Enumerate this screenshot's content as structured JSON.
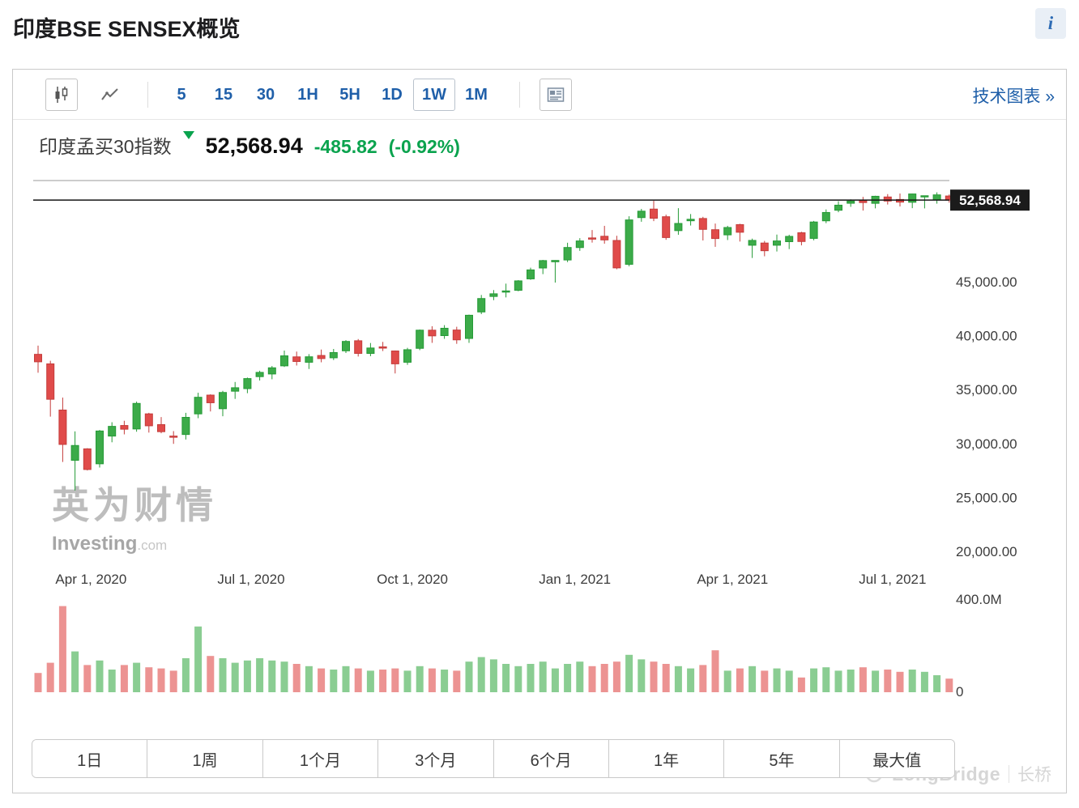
{
  "page": {
    "title": "印度BSE SENSEX概览",
    "info_icon": "i"
  },
  "toolbar": {
    "chart_types": [
      {
        "name": "candlestick",
        "selected": true
      },
      {
        "name": "line",
        "selected": false
      }
    ],
    "intervals": [
      {
        "label": "5"
      },
      {
        "label": "15"
      },
      {
        "label": "30"
      },
      {
        "label": "1H"
      },
      {
        "label": "5H"
      },
      {
        "label": "1D"
      },
      {
        "label": "1W",
        "selected": true
      },
      {
        "label": "1M"
      }
    ],
    "technical_link": "技术图表 »"
  },
  "quote": {
    "name": "印度孟买30指数",
    "price": "52,568.94",
    "change": "-485.82",
    "change_pct": "(-0.92%)",
    "direction": "down",
    "change_color": "#0aa34e"
  },
  "watermark": {
    "cn": "英为财情",
    "en": "Investing",
    "com": ".com"
  },
  "ranges": [
    "1日",
    "1周",
    "1个月",
    "3个月",
    "6个月",
    "1年",
    "5年",
    "最大值"
  ],
  "branding": {
    "logo": "LongBridge",
    "divider": "|",
    "cn": "长桥"
  },
  "chart_data": {
    "type": "candlestick",
    "interval": "1W",
    "legend_position": "none",
    "grid": false,
    "ylim": [
      18500,
      54500
    ],
    "current_price": {
      "value": 52568.94,
      "label": "52,568.94"
    },
    "y_ticks": [
      {
        "label": "45,000.00",
        "value": 45000
      },
      {
        "label": "40,000.00",
        "value": 40000
      },
      {
        "label": "35,000.00",
        "value": 35000
      },
      {
        "label": "30,000.00",
        "value": 30000
      },
      {
        "label": "25,000.00",
        "value": 25000
      },
      {
        "label": "20,000.00",
        "value": 20000
      }
    ],
    "x_ticks": [
      {
        "label": "Apr 1, 2020",
        "week": 4.3
      },
      {
        "label": "Jul 1, 2020",
        "week": 17.3
      },
      {
        "label": "Oct 1, 2020",
        "week": 30.4
      },
      {
        "label": "Jan 1, 2021",
        "week": 43.6
      },
      {
        "label": "Apr 1, 2021",
        "week": 56.4
      },
      {
        "label": "Jul 1, 2021",
        "week": 69.4
      }
    ],
    "volume_axis": {
      "max_label": "400.0M",
      "min_label": "0",
      "max_value_m": 400
    },
    "colors": {
      "up": "#3cab49",
      "up_border": "#259a36",
      "down": "#e04b4a",
      "down_border": "#c43c3b"
    },
    "candle_fields": [
      "week_start",
      "open",
      "high",
      "low",
      "close",
      "volume_m"
    ],
    "candles": [
      [
        "2020-03-02",
        38269,
        39083,
        36563,
        37577,
        85
      ],
      [
        "2020-03-09",
        37387,
        37673,
        32493,
        34103,
        130
      ],
      [
        "2020-03-16",
        33103,
        34258,
        28288,
        29916,
        380
      ],
      [
        "2020-03-23",
        28442,
        31126,
        25639,
        29816,
        180
      ],
      [
        "2020-03-30",
        29505,
        29567,
        27501,
        27591,
        120
      ],
      [
        "2020-04-06",
        28119,
        31255,
        27773,
        31160,
        140
      ],
      [
        "2020-04-13",
        30690,
        31974,
        30113,
        31589,
        100
      ],
      [
        "2020-04-20",
        31669,
        32109,
        30848,
        31327,
        120
      ],
      [
        "2020-04-27",
        31349,
        33887,
        31093,
        33718,
        130
      ],
      [
        "2020-05-04",
        32750,
        32845,
        31013,
        31643,
        110
      ],
      [
        "2020-05-11",
        31752,
        32451,
        30947,
        31098,
        105
      ],
      [
        "2020-05-18",
        30690,
        31150,
        29968,
        30673,
        95
      ],
      [
        "2020-05-25",
        30838,
        32846,
        30370,
        32424,
        150
      ],
      [
        "2020-06-01",
        32749,
        34706,
        32348,
        34287,
        290
      ],
      [
        "2020-06-08",
        34488,
        34560,
        32972,
        33781,
        160
      ],
      [
        "2020-06-15",
        33228,
        34881,
        32526,
        34732,
        150
      ],
      [
        "2020-06-22",
        34852,
        35707,
        34137,
        35171,
        130
      ],
      [
        "2020-06-29",
        35090,
        36115,
        34666,
        36021,
        140
      ],
      [
        "2020-07-06",
        36201,
        36749,
        35843,
        36594,
        150
      ],
      [
        "2020-07-13",
        36449,
        37185,
        35958,
        37020,
        140
      ],
      [
        "2020-07-20",
        37201,
        38618,
        37100,
        38129,
        135
      ],
      [
        "2020-07-27",
        38034,
        38525,
        37234,
        37607,
        125
      ],
      [
        "2020-08-03",
        37535,
        38286,
        36911,
        38041,
        115
      ],
      [
        "2020-08-10",
        38162,
        38714,
        37531,
        37877,
        105
      ],
      [
        "2020-08-17",
        37949,
        38766,
        37743,
        38435,
        100
      ],
      [
        "2020-08-24",
        38597,
        39584,
        38396,
        39467,
        115
      ],
      [
        "2020-08-31",
        39527,
        39687,
        38067,
        38357,
        105
      ],
      [
        "2020-09-07",
        38354,
        39320,
        38094,
        38855,
        95
      ],
      [
        "2020-09-14",
        38964,
        39423,
        38574,
        38845,
        100
      ],
      [
        "2020-09-21",
        38580,
        38625,
        36496,
        37389,
        105
      ],
      [
        "2020-09-28",
        37536,
        38871,
        37292,
        38697,
        95
      ],
      [
        "2020-10-05",
        38827,
        40571,
        38658,
        40509,
        115
      ],
      [
        "2020-10-12",
        40508,
        40876,
        39334,
        39982,
        105
      ],
      [
        "2020-10-19",
        40007,
        40978,
        39706,
        40686,
        100
      ],
      [
        "2020-10-26",
        40522,
        40826,
        39244,
        39614,
        95
      ],
      [
        "2020-11-02",
        39743,
        41954,
        39335,
        41893,
        135
      ],
      [
        "2020-11-09",
        42201,
        43773,
        42000,
        43443,
        155
      ],
      [
        "2020-11-16",
        43638,
        44230,
        43291,
        43882,
        145
      ],
      [
        "2020-11-23",
        44096,
        44825,
        43548,
        44150,
        125
      ],
      [
        "2020-11-30",
        44208,
        45148,
        44118,
        45080,
        115
      ],
      [
        "2020-12-07",
        45268,
        46309,
        45178,
        46099,
        125
      ],
      [
        "2020-12-14",
        46276,
        47026,
        45706,
        46961,
        135
      ],
      [
        "2020-12-21",
        46852,
        47000,
        44923,
        46974,
        105
      ],
      [
        "2020-12-28",
        47021,
        48616,
        46821,
        48176,
        125
      ],
      [
        "2021-01-04",
        48172,
        49042,
        47865,
        48783,
        135
      ],
      [
        "2021-01-11",
        49063,
        49795,
        48632,
        49035,
        115
      ],
      [
        "2021-01-18",
        49216,
        50184,
        48532,
        48879,
        125
      ],
      [
        "2021-01-25",
        48827,
        49263,
        46160,
        46286,
        135
      ],
      [
        "2021-02-01",
        46618,
        51073,
        46434,
        50732,
        165
      ],
      [
        "2021-02-08",
        50951,
        51756,
        50563,
        51544,
        145
      ],
      [
        "2021-02-15",
        51737,
        52517,
        50625,
        50890,
        135
      ],
      [
        "2021-02-22",
        51029,
        51222,
        48890,
        49100,
        125
      ],
      [
        "2021-03-01",
        49743,
        51822,
        49356,
        50405,
        115
      ],
      [
        "2021-03-08",
        50655,
        51279,
        50213,
        50792,
        105
      ],
      [
        "2021-03-15",
        50865,
        51020,
        48827,
        49858,
        120
      ],
      [
        "2021-03-22",
        49826,
        50399,
        48236,
        49009,
        185
      ],
      [
        "2021-03-29",
        49349,
        50184,
        48868,
        50030,
        95
      ],
      [
        "2021-04-05",
        50296,
        50375,
        48728,
        49591,
        105
      ],
      [
        "2021-04-12",
        48386,
        49000,
        47204,
        48832,
        115
      ],
      [
        "2021-04-19",
        48589,
        48785,
        47362,
        47878,
        95
      ],
      [
        "2021-04-26",
        48388,
        49375,
        47805,
        48782,
        105
      ],
      [
        "2021-05-03",
        48718,
        49359,
        48029,
        49206,
        95
      ],
      [
        "2021-05-10",
        49542,
        49633,
        48374,
        48733,
        65
      ],
      [
        "2021-05-17",
        49022,
        50640,
        48842,
        50540,
        105
      ],
      [
        "2021-05-24",
        50651,
        51705,
        50433,
        51422,
        110
      ],
      [
        "2021-05-31",
        51632,
        52474,
        51451,
        52100,
        95
      ],
      [
        "2021-06-07",
        52279,
        52641,
        51947,
        52474,
        100
      ],
      [
        "2021-06-14",
        52533,
        52869,
        51601,
        52344,
        110
      ],
      [
        "2021-06-21",
        52272,
        52975,
        51805,
        52925,
        95
      ],
      [
        "2021-06-28",
        52860,
        53127,
        52162,
        52484,
        100
      ],
      [
        "2021-07-05",
        52629,
        53185,
        51986,
        52386,
        90
      ],
      [
        "2021-07-12",
        52372,
        53174,
        51823,
        53140,
        100
      ],
      [
        "2021-07-19",
        52881,
        52982,
        51802,
        52975,
        90
      ],
      [
        "2021-07-26",
        52587,
        53290,
        52242,
        53055,
        75
      ],
      [
        "2021-08-02",
        52951,
        53095,
        52331,
        52568.94,
        60
      ]
    ]
  }
}
